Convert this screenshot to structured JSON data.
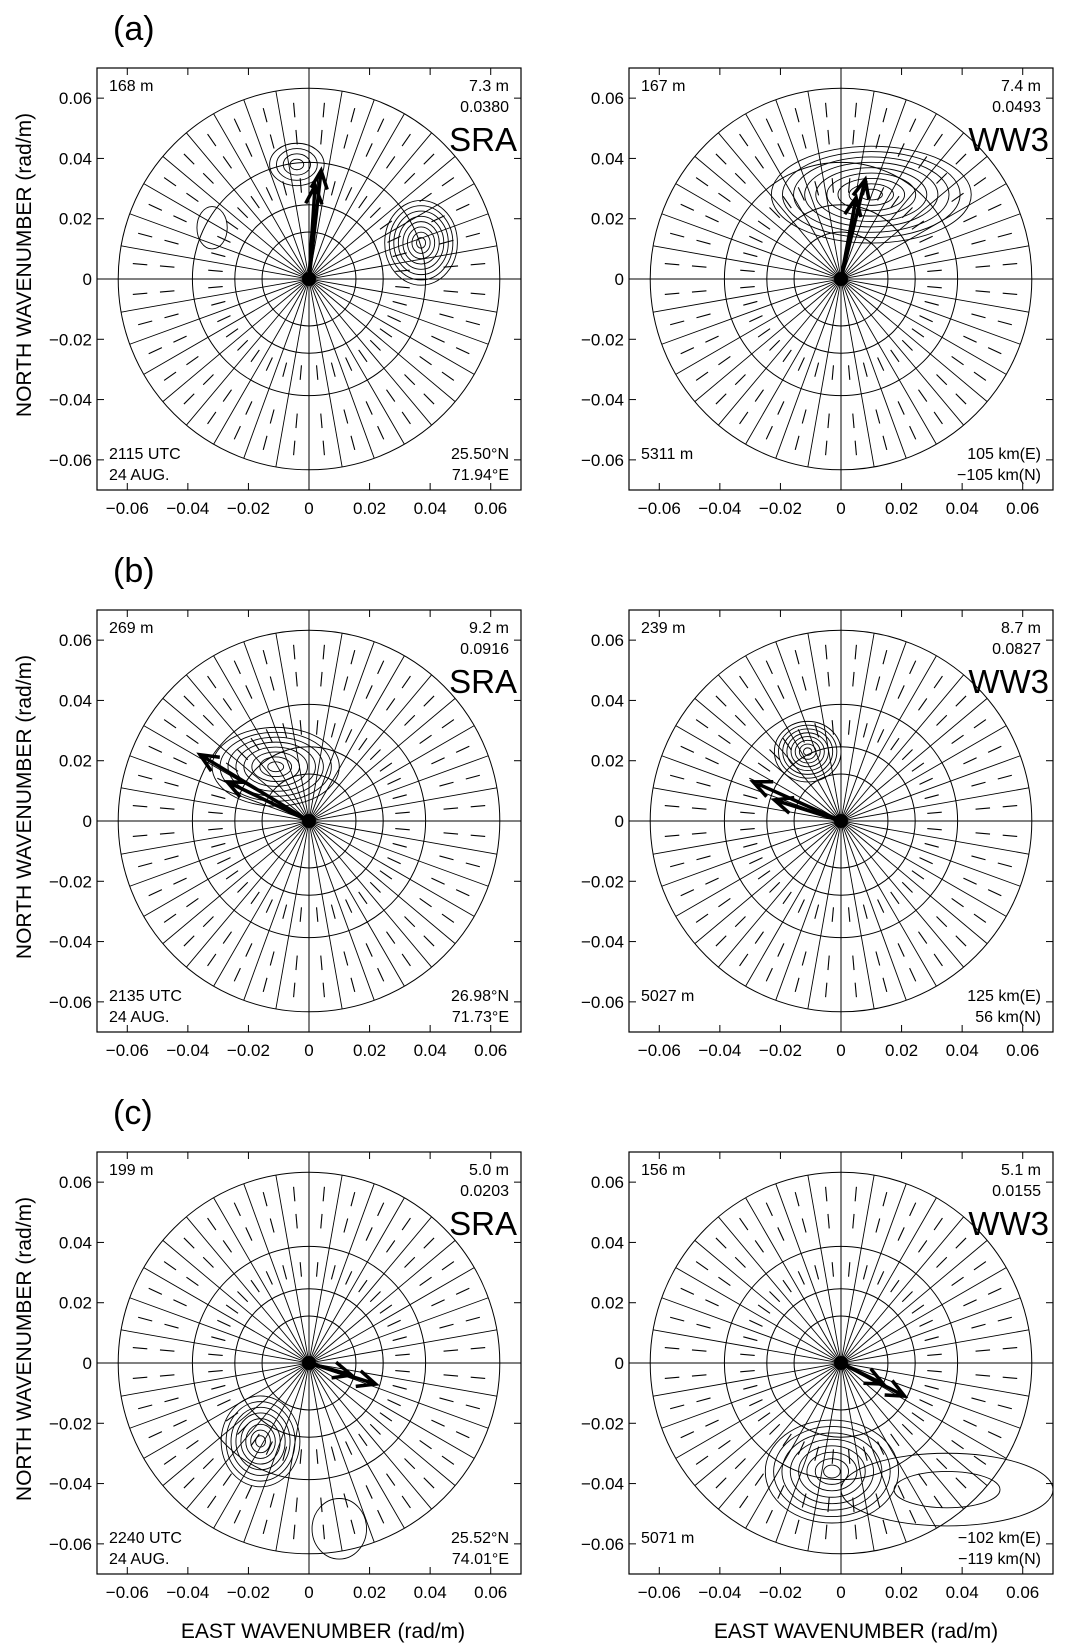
{
  "figure": {
    "panel_labels": [
      "(a)",
      "(b)",
      "(c)"
    ],
    "xlabel": "EAST WAVENUMBER (rad/m)",
    "ylabel": "NORTH WAVENUMBER (rad/m)",
    "tick_values": [
      -0.06,
      -0.04,
      -0.02,
      0,
      0.02,
      0.04,
      0.06
    ],
    "tick_labels": [
      "−0.06",
      "−0.04",
      "−0.02",
      "0",
      "0.02",
      "0.04",
      "0.06"
    ]
  },
  "chart_data": [
    {
      "type": "contour",
      "title": "SRA",
      "xlabel": "",
      "ylabel": "",
      "xlim": [
        -0.07,
        0.07
      ],
      "ylim": [
        -0.07,
        0.07
      ],
      "grid": "polar",
      "annotations": {
        "top_left": "168 m",
        "top_right_1": "7.3 m",
        "top_right_2": "0.0380",
        "bottom_left_1": "2115 UTC",
        "bottom_left_2": "24 AUG.",
        "bottom_right_1": "25.50°N",
        "bottom_right_2": "71.94°E"
      },
      "arrows": [
        {
          "x": 0.004,
          "y": 0.036
        },
        {
          "x": 0.002,
          "y": 0.031
        }
      ],
      "peaks": [
        {
          "x": -0.004,
          "y": 0.038,
          "rx": 0.009,
          "ry": 0.007,
          "n": 4
        },
        {
          "x": 0.037,
          "y": 0.012,
          "rx": 0.012,
          "ry": 0.014,
          "n": 8
        },
        {
          "x": -0.032,
          "y": 0.017,
          "rx": 0.005,
          "ry": 0.007,
          "n": 1
        }
      ]
    },
    {
      "type": "contour",
      "title": "WW3",
      "xlabel": "",
      "ylabel": "",
      "xlim": [
        -0.07,
        0.07
      ],
      "ylim": [
        -0.07,
        0.07
      ],
      "grid": "polar",
      "annotations": {
        "top_left": "167 m",
        "top_right_1": "7.4 m",
        "top_right_2": "0.0493",
        "bottom_left_1": "5311 m",
        "bottom_left_2": "",
        "bottom_right_1": "105  km(E)",
        "bottom_right_2": "−105 km(N)"
      },
      "arrows": [
        {
          "x": 0.008,
          "y": 0.033
        },
        {
          "x": 0.005,
          "y": 0.027
        }
      ],
      "peaks": [
        {
          "x": 0.01,
          "y": 0.028,
          "rx": 0.033,
          "ry": 0.016,
          "n": 9
        }
      ]
    },
    {
      "type": "contour",
      "title": "SRA",
      "xlabel": "",
      "ylabel": "",
      "xlim": [
        -0.07,
        0.07
      ],
      "ylim": [
        -0.07,
        0.07
      ],
      "grid": "polar",
      "annotations": {
        "top_left": "269 m",
        "top_right_1": "9.2 m",
        "top_right_2": "0.0916",
        "bottom_left_1": "2135 UTC",
        "bottom_left_2": "24 AUG.",
        "bottom_right_1": "26.98°N",
        "bottom_right_2": "71.73°E"
      },
      "arrows": [
        {
          "x": -0.036,
          "y": 0.022
        },
        {
          "x": -0.027,
          "y": 0.013
        }
      ],
      "peaks": [
        {
          "x": -0.011,
          "y": 0.018,
          "rx": 0.021,
          "ry": 0.013,
          "n": 8
        }
      ]
    },
    {
      "type": "contour",
      "title": "WW3",
      "xlabel": "",
      "ylabel": "",
      "xlim": [
        -0.07,
        0.07
      ],
      "ylim": [
        -0.07,
        0.07
      ],
      "grid": "polar",
      "annotations": {
        "top_left": "239 m",
        "top_right_1": "8.7 m",
        "top_right_2": "0.0827",
        "bottom_left_1": "5027 m",
        "bottom_left_2": "",
        "bottom_right_1": "125  km(E)",
        "bottom_right_2": "56    km(N)"
      },
      "arrows": [
        {
          "x": -0.029,
          "y": 0.013
        },
        {
          "x": -0.022,
          "y": 0.007
        }
      ],
      "peaks": [
        {
          "x": -0.011,
          "y": 0.023,
          "rx": 0.011,
          "ry": 0.01,
          "n": 8
        }
      ]
    },
    {
      "type": "contour",
      "title": "SRA",
      "xlabel": "",
      "ylabel": "",
      "xlim": [
        -0.07,
        0.07
      ],
      "ylim": [
        -0.07,
        0.07
      ],
      "grid": "polar",
      "annotations": {
        "top_left": "199 m",
        "top_right_1": "5.0 m",
        "top_right_2": "0.0203",
        "bottom_left_1": "2240 UTC",
        "bottom_left_2": "24 AUG.",
        "bottom_right_1": "25.52°N",
        "bottom_right_2": "74.01°E"
      },
      "arrows": [
        {
          "x": 0.022,
          "y": -0.007
        },
        {
          "x": 0.014,
          "y": -0.004
        }
      ],
      "peaks": [
        {
          "x": -0.016,
          "y": -0.026,
          "rx": 0.013,
          "ry": 0.015,
          "n": 8
        },
        {
          "x": 0.01,
          "y": -0.055,
          "rx": 0.009,
          "ry": 0.01,
          "n": 1
        }
      ]
    },
    {
      "type": "contour",
      "title": "WW3",
      "xlabel": "",
      "ylabel": "",
      "xlim": [
        -0.07,
        0.07
      ],
      "ylim": [
        -0.07,
        0.07
      ],
      "grid": "polar",
      "annotations": {
        "top_left": "156 m",
        "top_right_1": "5.1 m",
        "top_right_2": "0.0155",
        "bottom_left_1": "5071 m",
        "bottom_left_2": "",
        "bottom_right_1": "−102 km(E)",
        "bottom_right_2": "−119 km(N)"
      },
      "arrows": [
        {
          "x": 0.021,
          "y": -0.011
        },
        {
          "x": 0.014,
          "y": -0.007
        }
      ],
      "peaks": [
        {
          "x": -0.003,
          "y": -0.036,
          "rx": 0.022,
          "ry": 0.017,
          "n": 8
        },
        {
          "x": 0.035,
          "y": -0.042,
          "rx": 0.035,
          "ry": 0.012,
          "n": 2
        }
      ]
    }
  ]
}
